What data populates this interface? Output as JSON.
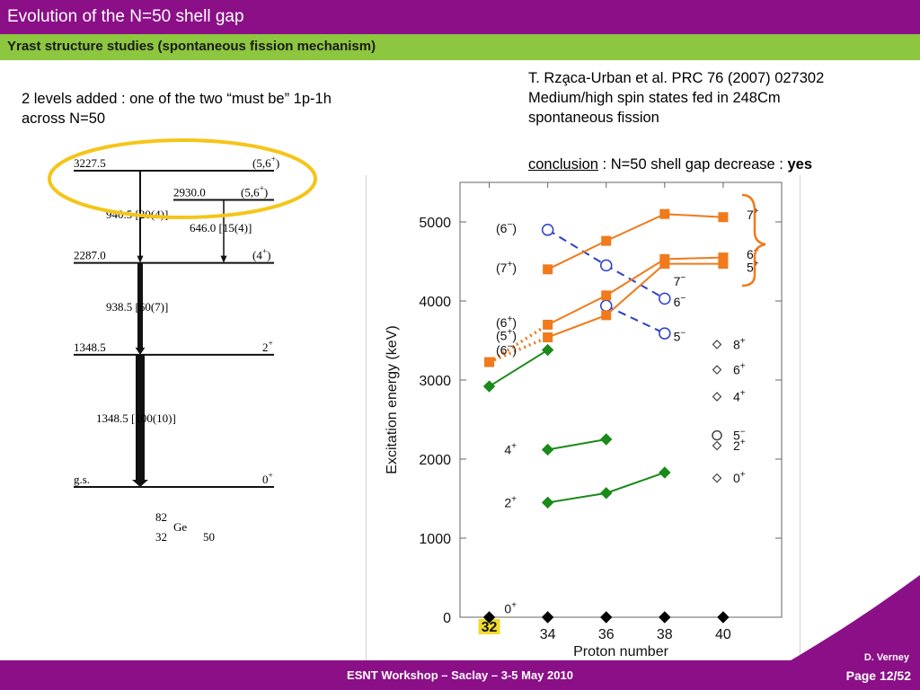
{
  "header": {
    "title": "Evolution of the N=50 shell gap",
    "subtitle": "Yrast structure studies (spontaneous fission mechanism)"
  },
  "notes": {
    "left_line1": "2 levels added : one of the two “must be” 1p-1h",
    "left_line2": "across N=50",
    "ref_line1": "T. Rza̧ca-Urban et al. PRC 76 (2007) 027302",
    "ref_line2": "Medium/high spin states fed in 248Cm",
    "ref_line3": "spontaneous fission",
    "conclusion_label": "conclusion",
    "conclusion_text": " : N=50 shell gap decrease : ",
    "conclusion_answer": "yes"
  },
  "level_scheme": {
    "nucleus": {
      "mass": "82",
      "z": "32",
      "symbol": "Ge",
      "n": "50"
    },
    "levels": [
      {
        "energy": 3227.5,
        "energy_text": "3227.5",
        "spin_text": "(5,6",
        "spin_sup": "+",
        "spin_close": ")"
      },
      {
        "energy": 2930.0,
        "energy_text": "2930.0",
        "spin_text": "(5,6",
        "spin_sup": "+",
        "spin_close": ")"
      },
      {
        "energy": 2287.0,
        "energy_text": "2287.0",
        "spin_text": "(4",
        "spin_sup": "+",
        "spin_close": ")"
      },
      {
        "energy": 1348.5,
        "energy_text": "1348.5",
        "spin_text": "2",
        "spin_sup": "+",
        "spin_close": ""
      },
      {
        "energy": 0,
        "energy_text": "g.s.",
        "spin_text": "0",
        "spin_sup": "+",
        "spin_close": ""
      }
    ],
    "transitions": [
      {
        "label": "940.5 [20(4)]",
        "from": 3227.5,
        "to": 2287.0,
        "intensity": 20
      },
      {
        "label": "646.0 [15(4)]",
        "from": 2930.0,
        "to": 2287.0,
        "intensity": 15
      },
      {
        "label": "938.5 [60(7)]",
        "from": 2287.0,
        "to": 1348.5,
        "intensity": 60
      },
      {
        "label": "1348.5 [100(10)]",
        "from": 1348.5,
        "to": 0,
        "intensity": 100
      }
    ],
    "highlight_color": "#f5c518"
  },
  "chart_data": {
    "type": "scatter",
    "xlabel": "Proton number",
    "ylabel": "Excitation energy (keV)",
    "xticks": [
      32,
      34,
      36,
      38,
      40
    ],
    "yticks": [
      0,
      1000,
      2000,
      3000,
      4000,
      5000
    ],
    "ylim": [
      0,
      5500
    ],
    "xlim": [
      31,
      42
    ],
    "highlight_tick": "32",
    "series": [
      {
        "name": "0+",
        "marker": "diamond",
        "color": "#000000",
        "filled": true,
        "line": "none",
        "x": [
          32,
          34,
          36,
          38,
          40
        ],
        "y": [
          0,
          0,
          0,
          0,
          0
        ]
      },
      {
        "name": "2+",
        "marker": "diamond",
        "color": "#1a8a1a",
        "filled": true,
        "line": "solid",
        "x": [
          34,
          36,
          38
        ],
        "y": [
          1450,
          1570,
          1830
        ]
      },
      {
        "name": "4+",
        "marker": "diamond",
        "color": "#1a8a1a",
        "filled": true,
        "line": "solid",
        "x": [
          34,
          36
        ],
        "y": [
          2120,
          2250
        ]
      },
      {
        "name": "6+",
        "marker": "diamond",
        "color": "#1a8a1a",
        "filled": true,
        "line": "solid",
        "x": [
          32,
          34
        ],
        "y": [
          2920,
          3380
        ]
      },
      {
        "name": "5-",
        "marker": "circle",
        "color": "#2a3fc8",
        "filled": false,
        "line": "dashed",
        "x": [
          34,
          36,
          38
        ],
        "y": [
          4900,
          4450,
          4030
        ]
      },
      {
        "name": "7-",
        "marker": "circle",
        "color": "#2a3fc8",
        "filled": false,
        "line": "dashed",
        "x": [
          36,
          38
        ],
        "y": [
          3940,
          3590
        ]
      },
      {
        "name": "(7+)",
        "marker": "square",
        "color": "#f07a1c",
        "filled": true,
        "line": "solid",
        "x": [
          34,
          36,
          38,
          40
        ],
        "y": [
          4400,
          4760,
          5100,
          5060
        ]
      },
      {
        "name": "(6+)",
        "marker": "square",
        "color": "#f07a1c",
        "filled": true,
        "line": "solid",
        "x": [
          34,
          36,
          38,
          40
        ],
        "y": [
          3700,
          4070,
          4530,
          4550
        ]
      },
      {
        "name": "(5+)",
        "marker": "square",
        "color": "#f07a1c",
        "filled": true,
        "line": "solid",
        "x": [
          34,
          36,
          38,
          40
        ],
        "y": [
          3540,
          3820,
          4470,
          4470
        ]
      },
      {
        "name": "orange-32",
        "marker": "square",
        "color": "#f07a1c",
        "filled": true,
        "line": "dotted",
        "x": [
          32,
          34,
          34
        ],
        "y": [
          3227,
          3700,
          3540
        ]
      }
    ],
    "left_labels": [
      {
        "text": "(6",
        "sup": "−",
        "close": ")",
        "y": 4920
      },
      {
        "text": "(7",
        "sup": "+",
        "close": ")",
        "y": 4420
      },
      {
        "text": "(6",
        "sup": "+",
        "close": ")",
        "y": 3730
      },
      {
        "text": "(5",
        "sup": "+",
        "close": ")",
        "y": 3560
      },
      {
        "text": "(6",
        "sup": "−",
        "close": ")",
        "y": 3380
      },
      {
        "text": "4",
        "sup": "+",
        "close": "",
        "y": 2120
      },
      {
        "text": "2",
        "sup": "+",
        "close": "",
        "y": 1450
      },
      {
        "text": "0",
        "sup": "+",
        "close": "",
        "y": 110
      }
    ],
    "right_labels": [
      {
        "text": "7",
        "sup": "+",
        "y": 5100,
        "x": 40.8
      },
      {
        "text": "6",
        "sup": "+",
        "y": 4600,
        "x": 40.8
      },
      {
        "text": "5",
        "sup": "+",
        "y": 4440,
        "x": 40.8
      },
      {
        "text": "7",
        "sup": "−",
        "y": 4260,
        "x": 38.3
      },
      {
        "text": "6",
        "sup": "−",
        "y": 4000,
        "x": 38.3
      },
      {
        "text": "5",
        "sup": "−",
        "y": 3560,
        "x": 38.3
      }
    ],
    "legend": [
      {
        "marker": "diamond",
        "text": "8",
        "sup": "+",
        "y": 3450
      },
      {
        "marker": "diamond",
        "text": "6",
        "sup": "+",
        "y": 3130
      },
      {
        "marker": "diamond",
        "text": "4",
        "sup": "+",
        "y": 2790
      },
      {
        "marker": "circle",
        "text": "5",
        "sup": "−",
        "y": 2300
      },
      {
        "marker": "diamond",
        "text": "2",
        "sup": "+",
        "y": 2170
      },
      {
        "marker": "diamond",
        "text": "0",
        "sup": "+",
        "y": 1760
      }
    ]
  },
  "footer": {
    "event": "ESNT Workshop –   Saclay –   3-5 May 2010",
    "author": "D. Verney",
    "page": "Page 12/52"
  }
}
